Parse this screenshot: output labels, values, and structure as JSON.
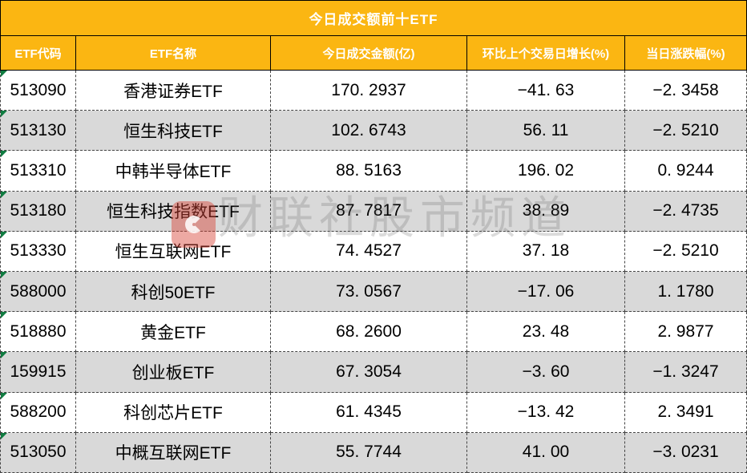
{
  "chart_data": {
    "type": "table",
    "title": "今日成交额前十ETF",
    "columns": [
      "ETF代码",
      "ETF名称",
      "今日成交金额(亿)",
      "环比上个交易日增长(%)",
      "当日涨跌幅(%)"
    ],
    "rows": [
      {
        "code": "513090",
        "name": "香港证券ETF",
        "amount": "170. 2937",
        "growth": "−41. 63",
        "change": "−2. 3458"
      },
      {
        "code": "513130",
        "name": "恒生科技ETF",
        "amount": "102. 6743",
        "growth": "56. 11",
        "change": "−2. 5210"
      },
      {
        "code": "513310",
        "name": "中韩半导体ETF",
        "amount": "88. 5163",
        "growth": "196. 02",
        "change": "0. 9244"
      },
      {
        "code": "513180",
        "name": "恒生科技指数ETF",
        "amount": "87. 7817",
        "growth": "38. 89",
        "change": "−2. 4735"
      },
      {
        "code": "513330",
        "name": "恒生互联网ETF",
        "amount": "74. 4527",
        "growth": "37. 18",
        "change": "−2. 5210"
      },
      {
        "code": "588000",
        "name": "科创50ETF",
        "amount": "73. 0567",
        "growth": "−17. 06",
        "change": "1. 1780"
      },
      {
        "code": "518880",
        "name": "黄金ETF",
        "amount": "68. 2600",
        "growth": "23. 48",
        "change": "2. 9877"
      },
      {
        "code": "159915",
        "name": "创业板ETF",
        "amount": "67. 3054",
        "growth": "−3. 60",
        "change": "−1. 3247"
      },
      {
        "code": "588200",
        "name": "科创芯片ETF",
        "amount": "61. 4345",
        "growth": "−13. 42",
        "change": "2. 3491"
      },
      {
        "code": "513050",
        "name": "中概互联网ETF",
        "amount": "55. 7744",
        "growth": "41. 00",
        "change": "−3. 0231"
      }
    ],
    "layout": {
      "striped_rows": true,
      "stripe_pattern": "odd rows white, even rows gray",
      "grid": "dashed black cell borders, solid black header borders",
      "header_position": "top"
    }
  },
  "watermark": {
    "text": "财联社股市频道",
    "logo": "cailianshe-c-logo"
  },
  "colors": {
    "header_orange": "#fbb612",
    "header_text": "#ffffff",
    "row_white": "#ffffff",
    "row_gray": "#d9d9d9",
    "body_text": "#000000",
    "error_triangle_green": "#107c41",
    "watermark_logo_red": "#d64034",
    "watermark_text_gray": "#bfbfbf"
  }
}
